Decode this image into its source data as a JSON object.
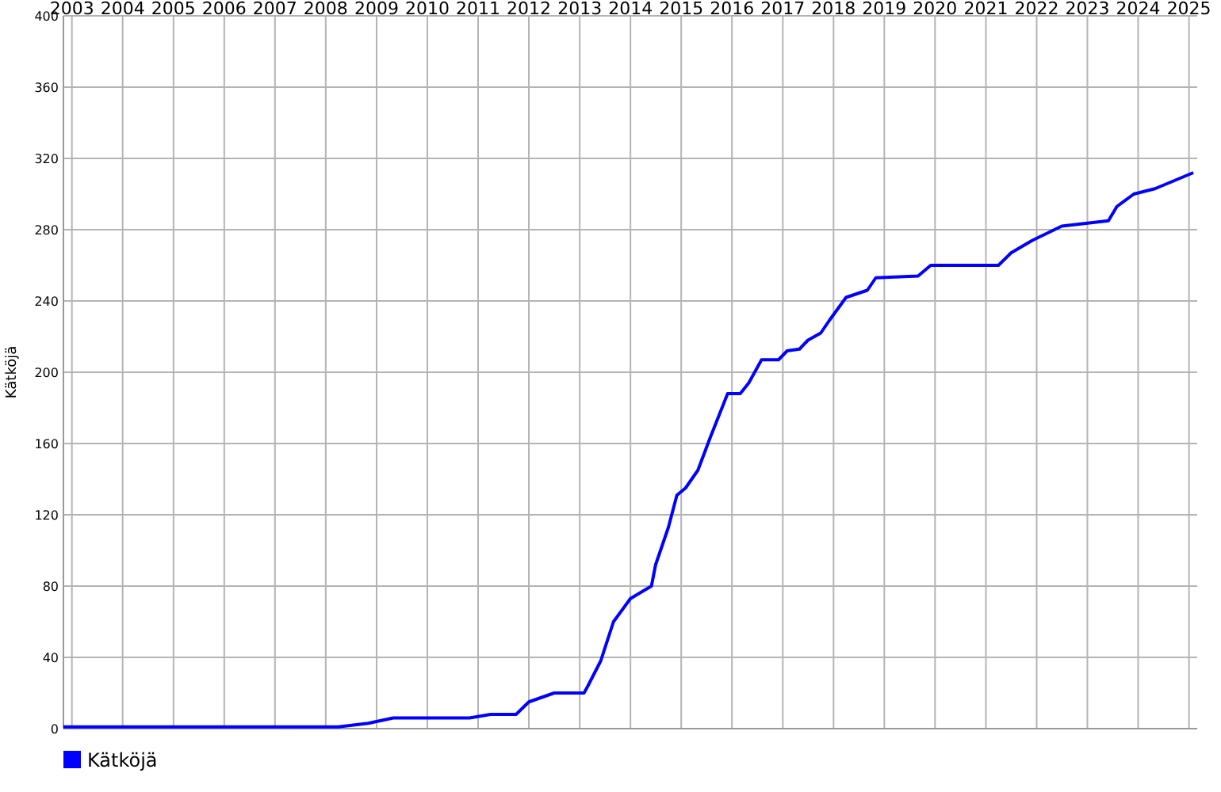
{
  "chart_data": {
    "type": "line",
    "ylabel": "Kätköjä",
    "xlim": [
      "2002-11",
      "2025-03"
    ],
    "ylim": [
      0,
      400
    ],
    "yticks": [
      0,
      40,
      80,
      120,
      160,
      200,
      240,
      280,
      320,
      360,
      400
    ],
    "xticks": [
      {
        "value": "2003",
        "label": "2003"
      },
      {
        "value": "2004",
        "label": "2004"
      },
      {
        "value": "2005",
        "label": "2005"
      },
      {
        "value": "2006",
        "label": "2006"
      },
      {
        "value": "2007",
        "label": "2007"
      },
      {
        "value": "2008",
        "label": "2008"
      },
      {
        "value": "2009",
        "label": "2009"
      },
      {
        "value": "2010",
        "label": "2010"
      },
      {
        "value": "2011",
        "label": "2011"
      },
      {
        "value": "2012",
        "label": "2012"
      },
      {
        "value": "2013",
        "label": "2013"
      },
      {
        "value": "2014",
        "label": "2014"
      },
      {
        "value": "2015",
        "label": "2015"
      },
      {
        "value": "2016",
        "label": "2016"
      },
      {
        "value": "2017",
        "label": "2017"
      },
      {
        "value": "2018",
        "label": "2018"
      },
      {
        "value": "2019",
        "label": "2019"
      },
      {
        "value": "2020",
        "label": "2020"
      },
      {
        "value": "2021",
        "label": "2021"
      },
      {
        "value": "2022",
        "label": "2022"
      },
      {
        "value": "2023",
        "label": "2023"
      },
      {
        "value": "2024",
        "label": "2024"
      },
      {
        "value": "2025",
        "label": "2025"
      }
    ],
    "grid": true,
    "legend": "bottom",
    "marker": "none",
    "line_style": "solid",
    "series": [
      {
        "name": "Kätköjä",
        "color": "#0000ff",
        "x": [
          "2002-11",
          "2008-04",
          "2008-11",
          "2009-05",
          "2010-11",
          "2011-04",
          "2011-10",
          "2012-01",
          "2012-07",
          "2013-02",
          "2013-03",
          "2013-06",
          "2013-09",
          "2014-01",
          "2014-06",
          "2014-07",
          "2014-10",
          "2014-12",
          "2015-02",
          "2015-05",
          "2015-08",
          "2015-12",
          "2016-03",
          "2016-05",
          "2016-08",
          "2016-12",
          "2017-02",
          "2017-05",
          "2017-07",
          "2017-10",
          "2017-12",
          "2018-04",
          "2018-09",
          "2018-11",
          "2019-09",
          "2019-12",
          "2021-04",
          "2021-07",
          "2021-12",
          "2022-07",
          "2023-06",
          "2023-08",
          "2023-12",
          "2024-05",
          "2024-09",
          "2025-02"
        ],
        "values": [
          1,
          1,
          3,
          6,
          6,
          8,
          8,
          15,
          20,
          20,
          24,
          38,
          60,
          73,
          80,
          92,
          113,
          131,
          135,
          145,
          164,
          188,
          188,
          194,
          207,
          207,
          212,
          213,
          218,
          222,
          229,
          242,
          246,
          253,
          254,
          260,
          260,
          267,
          274,
          282,
          285,
          293,
          300,
          303,
          307,
          312
        ]
      }
    ]
  }
}
